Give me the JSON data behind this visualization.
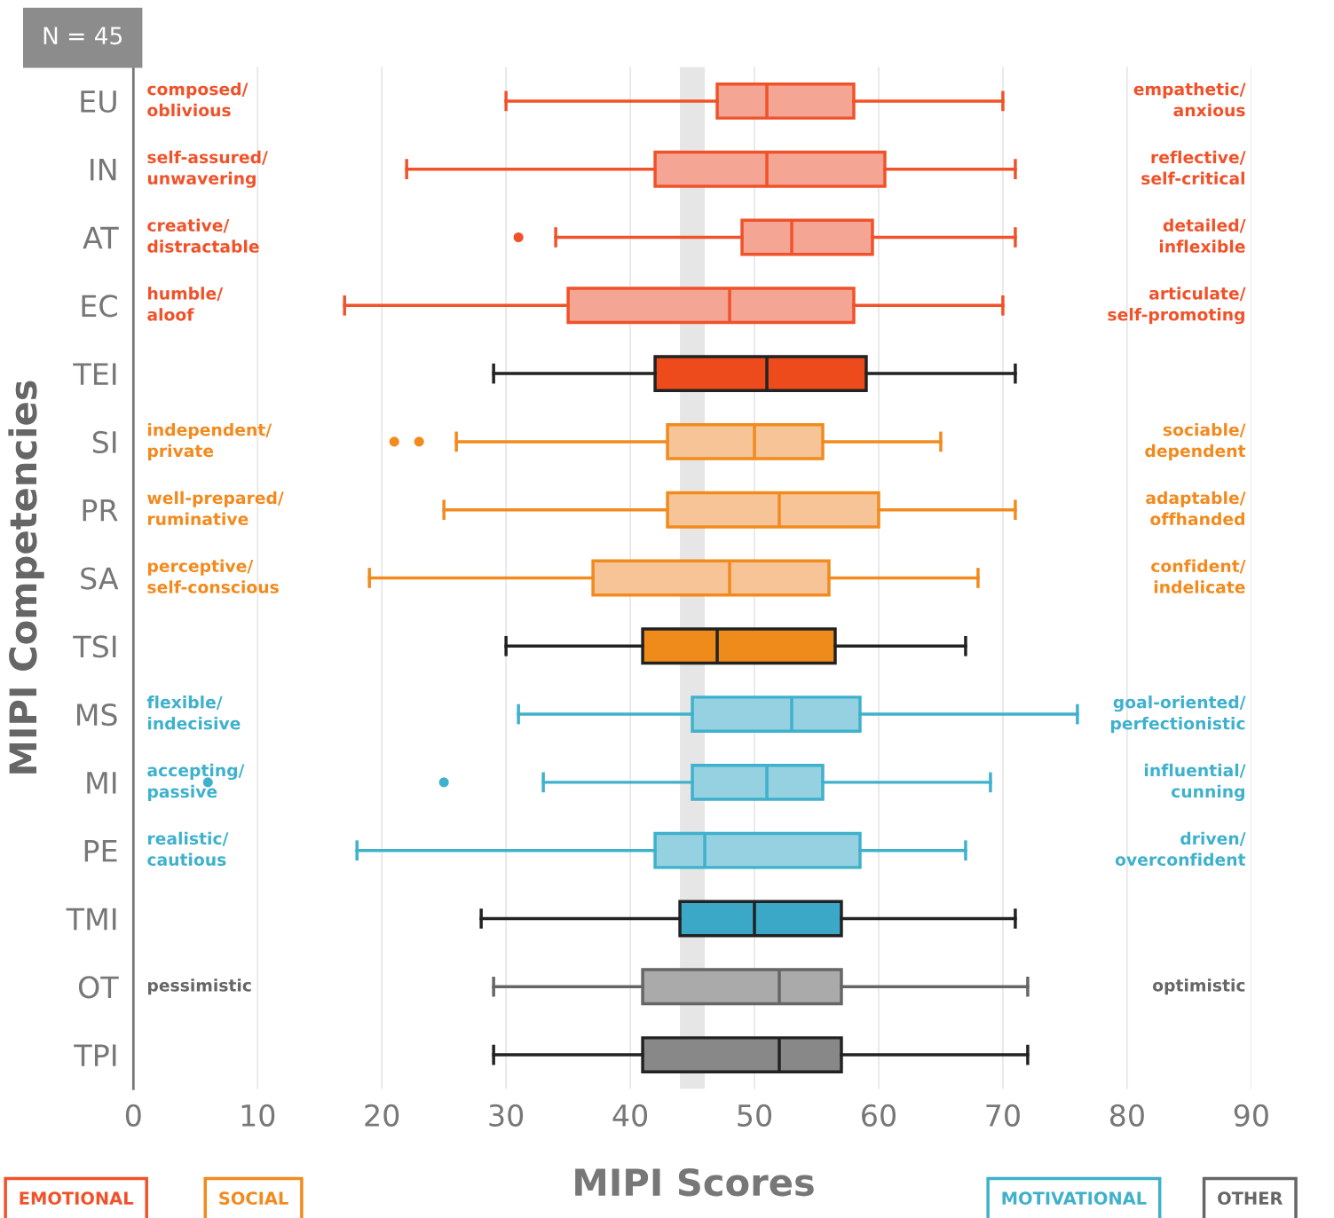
{
  "chart_data": {
    "type": "box",
    "orientation": "horizontal",
    "categories": [
      "EU",
      "IN",
      "AT",
      "EC",
      "TEI",
      "SI",
      "PR",
      "SA",
      "TSI",
      "MS",
      "MI",
      "PE",
      "TMI",
      "OT",
      "TPI"
    ],
    "series": [
      {
        "name": "EMOTIONAL",
        "color": "#f0522a",
        "colors": [
          "#f4a594",
          "#f4a594",
          "#f4a594",
          "#f4a594",
          null,
          null,
          null,
          null,
          null,
          null,
          null,
          null,
          null,
          null,
          null
        ],
        "boxes": [
          {
            "low": 30,
            "q1": 47,
            "median": 51,
            "q3": 58,
            "high": 70
          },
          {
            "low": 22,
            "q1": 42,
            "median": 51,
            "q3": 60.5,
            "high": 71
          },
          {
            "low": 34,
            "q1": 49,
            "median": 53,
            "q3": 59.5,
            "high": 71,
            "outliers": [
              31
            ]
          },
          {
            "low": 17,
            "q1": 35,
            "median": 48,
            "q3": 58,
            "high": 70
          },
          null,
          null,
          null,
          null,
          null,
          null,
          null,
          null,
          null,
          null,
          null
        ]
      },
      {
        "color": "#222222",
        "colors": [
          null,
          null,
          null,
          null,
          "#ee4b1c",
          null,
          null,
          null,
          null,
          null,
          null,
          null,
          null,
          null,
          null
        ],
        "boxes": [
          null,
          null,
          null,
          null,
          {
            "low": 29,
            "q1": 42,
            "median": 51,
            "q3": 59,
            "high": 71
          },
          null,
          null,
          null,
          null,
          null,
          null,
          null,
          null,
          null,
          null
        ]
      },
      {
        "name": "SOCIAL",
        "color": "#f28a1e",
        "colors": [
          null,
          null,
          null,
          null,
          null,
          "#f6c497",
          "#f6c497",
          "#f6c497",
          null,
          null,
          null,
          null,
          null,
          null,
          null
        ],
        "boxes": [
          null,
          null,
          null,
          null,
          null,
          {
            "low": 26,
            "q1": 43,
            "median": 50,
            "q3": 55.5,
            "high": 65,
            "outliers": [
              21,
              23
            ]
          },
          {
            "low": 25,
            "q1": 43,
            "median": 52,
            "q3": 60,
            "high": 71
          },
          {
            "low": 19,
            "q1": 37,
            "median": 48,
            "q3": 56,
            "high": 68
          },
          null,
          null,
          null,
          null,
          null,
          null,
          null
        ]
      },
      {
        "color": "#222222",
        "colors": [
          null,
          null,
          null,
          null,
          null,
          null,
          null,
          null,
          "#ee8b1a",
          null,
          null,
          null,
          null,
          null,
          null
        ],
        "boxes": [
          null,
          null,
          null,
          null,
          null,
          null,
          null,
          null,
          {
            "low": 30,
            "q1": 41,
            "median": 47,
            "q3": 56.5,
            "high": 67
          },
          null,
          null,
          null,
          null,
          null,
          null
        ]
      },
      {
        "name": "MOTIVATIONAL",
        "color": "#3fb1cc",
        "colors": [
          null,
          null,
          null,
          null,
          null,
          null,
          null,
          null,
          null,
          "#95d1e0",
          "#95d1e0",
          "#95d1e0",
          null,
          null,
          null
        ],
        "boxes": [
          null,
          null,
          null,
          null,
          null,
          null,
          null,
          null,
          null,
          {
            "low": 31,
            "q1": 45,
            "median": 53,
            "q3": 58.5,
            "high": 76
          },
          {
            "low": 33,
            "q1": 45,
            "median": 51,
            "q3": 55.5,
            "high": 69,
            "outliers": [
              6,
              25
            ]
          },
          {
            "low": 18,
            "q1": 42,
            "median": 46,
            "q3": 58.5,
            "high": 67
          },
          null,
          null,
          null
        ]
      },
      {
        "color": "#222222",
        "colors": [
          null,
          null,
          null,
          null,
          null,
          null,
          null,
          null,
          null,
          null,
          null,
          null,
          "#3aa8c6",
          null,
          null
        ],
        "boxes": [
          null,
          null,
          null,
          null,
          null,
          null,
          null,
          null,
          null,
          null,
          null,
          null,
          {
            "low": 28,
            "q1": 44,
            "median": 50,
            "q3": 57,
            "high": 71
          },
          null,
          null
        ]
      },
      {
        "name": "OTHER",
        "color": "#666666",
        "colors": [
          null,
          null,
          null,
          null,
          null,
          null,
          null,
          null,
          null,
          null,
          null,
          null,
          null,
          "#aaaaaa",
          null
        ],
        "boxes": [
          null,
          null,
          null,
          null,
          null,
          null,
          null,
          null,
          null,
          null,
          null,
          null,
          null,
          {
            "low": 29,
            "q1": 41,
            "median": 52,
            "q3": 57,
            "high": 72
          },
          null
        ]
      },
      {
        "color": "#222222",
        "colors": [
          null,
          null,
          null,
          null,
          null,
          null,
          null,
          null,
          null,
          null,
          null,
          null,
          null,
          null,
          "#888888"
        ],
        "boxes": [
          null,
          null,
          null,
          null,
          null,
          null,
          null,
          null,
          null,
          null,
          null,
          null,
          null,
          null,
          {
            "low": 29,
            "q1": 41,
            "median": 52,
            "q3": 57,
            "high": 72
          }
        ]
      }
    ],
    "xlim": [
      0,
      90
    ],
    "xticks": [
      0,
      10,
      20,
      30,
      40,
      50,
      60,
      70,
      80,
      90
    ],
    "xlabel": "MIPI Scores",
    "ylabel": "MIPI Competencies",
    "grid": "x",
    "legend": "bottom",
    "bands": [
      {
        "axis": "x",
        "from": 44,
        "to": 46,
        "color": "#e6e6e6"
      }
    ],
    "annotations": [
      "N = 45",
      "composed/\noblivious",
      "empathetic/\nanxious",
      "self-assured/\nunwavering",
      "reflective/\nself-critical",
      "creative/\ndistractable",
      "detailed/\ninflexible",
      "humble/\naloof",
      "articulate/\nself-promoting",
      "independent/\nprivate",
      "sociable/\ndependent",
      "well-prepared/\nruminative",
      "adaptable/\noffhanded",
      "perceptive/\nself-conscious",
      "confident/\nindelicate",
      "flexible/\nindecisive",
      "goal-oriented/\nperfectionistic",
      "accepting/\npassive",
      "influential/\ncunning",
      "realistic/\ncautious",
      "driven/\noverconfident",
      "pessimistic",
      "optimistic"
    ]
  }
}
